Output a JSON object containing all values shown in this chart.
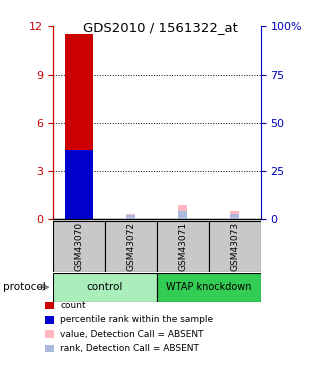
{
  "title": "GDS2010 / 1561322_at",
  "samples": [
    "GSM43070",
    "GSM43072",
    "GSM43071",
    "GSM43073"
  ],
  "ylim_left": [
    0,
    12
  ],
  "ylim_right": [
    0,
    100
  ],
  "yticks_left": [
    0,
    3,
    6,
    9,
    12
  ],
  "yticks_right": [
    0,
    25,
    50,
    75,
    100
  ],
  "ytick_labels_right": [
    "0",
    "25",
    "50",
    "75",
    "100%"
  ],
  "red_bars": [
    11.5,
    0.0,
    0.0,
    0.0
  ],
  "blue_bars": [
    4.3,
    0.0,
    0.0,
    0.0
  ],
  "pink_bars": [
    0.0,
    0.35,
    0.9,
    0.5
  ],
  "lightblue_bars": [
    0.0,
    0.25,
    0.55,
    0.35
  ],
  "legend_items": [
    {
      "color": "#CC0000",
      "label": "count"
    },
    {
      "color": "#0000CC",
      "label": "percentile rank within the sample"
    },
    {
      "color": "#FFB6C1",
      "label": "value, Detection Call = ABSENT"
    },
    {
      "color": "#AABBDD",
      "label": "rank, Detection Call = ABSENT"
    }
  ],
  "control_color": "#AAEEBB",
  "wtap_color": "#33CC55",
  "sample_box_color": "#C8C8C8",
  "tick_color_left": "#CC0000",
  "tick_color_right": "#0000BB",
  "background_color": "#ffffff"
}
